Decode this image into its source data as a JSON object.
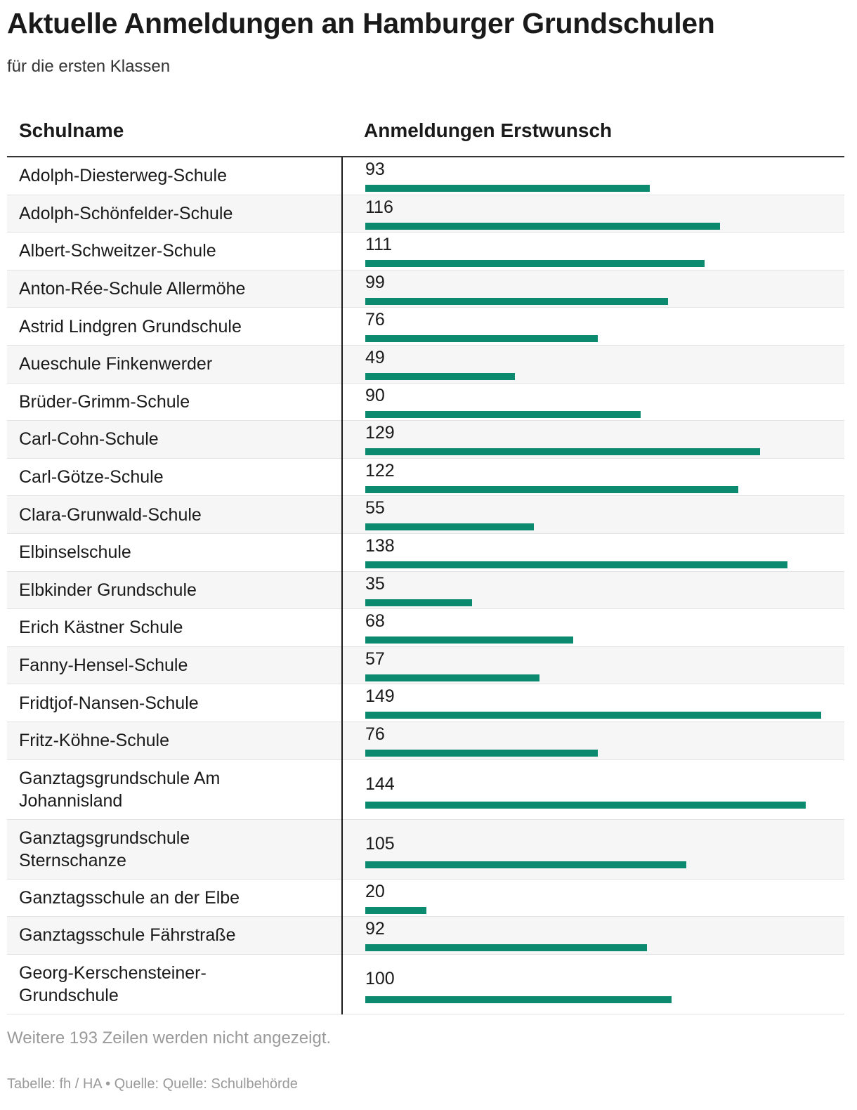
{
  "header": {
    "title": "Aktuelle Anmeldungen an Hamburger Grundschulen",
    "subtitle": "für die ersten Klassen"
  },
  "table": {
    "col_name": "Schulname",
    "col_value": "Anmeldungen Erstwunsch"
  },
  "chart_data": {
    "type": "table",
    "columns": [
      "Schulname",
      "Anmeldungen Erstwunsch"
    ],
    "bar_color": "#0b8a6f",
    "max": 149,
    "rows": [
      {
        "name": "Adolph-Diesterweg-Schule",
        "value": 93
      },
      {
        "name": "Adolph-Schönfelder-Schule",
        "value": 116
      },
      {
        "name": "Albert-Schweitzer-Schule",
        "value": 111
      },
      {
        "name": "Anton-Rée-Schule Allermöhe",
        "value": 99
      },
      {
        "name": "Astrid Lindgren Grundschule",
        "value": 76
      },
      {
        "name": "Aueschule Finkenwerder",
        "value": 49
      },
      {
        "name": "Brüder-Grimm-Schule",
        "value": 90
      },
      {
        "name": "Carl-Cohn-Schule",
        "value": 129
      },
      {
        "name": "Carl-Götze-Schule",
        "value": 122
      },
      {
        "name": "Clara-Grunwald-Schule",
        "value": 55
      },
      {
        "name": "Elbinselschule",
        "value": 138
      },
      {
        "name": "Elbkinder Grundschule",
        "value": 35
      },
      {
        "name": "Erich Kästner Schule",
        "value": 68
      },
      {
        "name": "Fanny-Hensel-Schule",
        "value": 57
      },
      {
        "name": "Fridtjof-Nansen-Schule",
        "value": 149
      },
      {
        "name": "Fritz-Köhne-Schule",
        "value": 76
      },
      {
        "name": "Ganztagsgrundschule Am Johannisland",
        "value": 144
      },
      {
        "name": "Ganztagsgrundschule Sternschanze",
        "value": 105
      },
      {
        "name": "Ganztagsschule an der Elbe",
        "value": 20
      },
      {
        "name": "Ganztagsschule Fährstraße",
        "value": 92
      },
      {
        "name": "Georg-Kerschensteiner-Grundschule",
        "value": 100
      }
    ]
  },
  "more_rows": "Weitere 193 Zeilen werden nicht angezeigt.",
  "footer": "Tabelle: fh / HA • Quelle: Quelle: Schulbehörde"
}
